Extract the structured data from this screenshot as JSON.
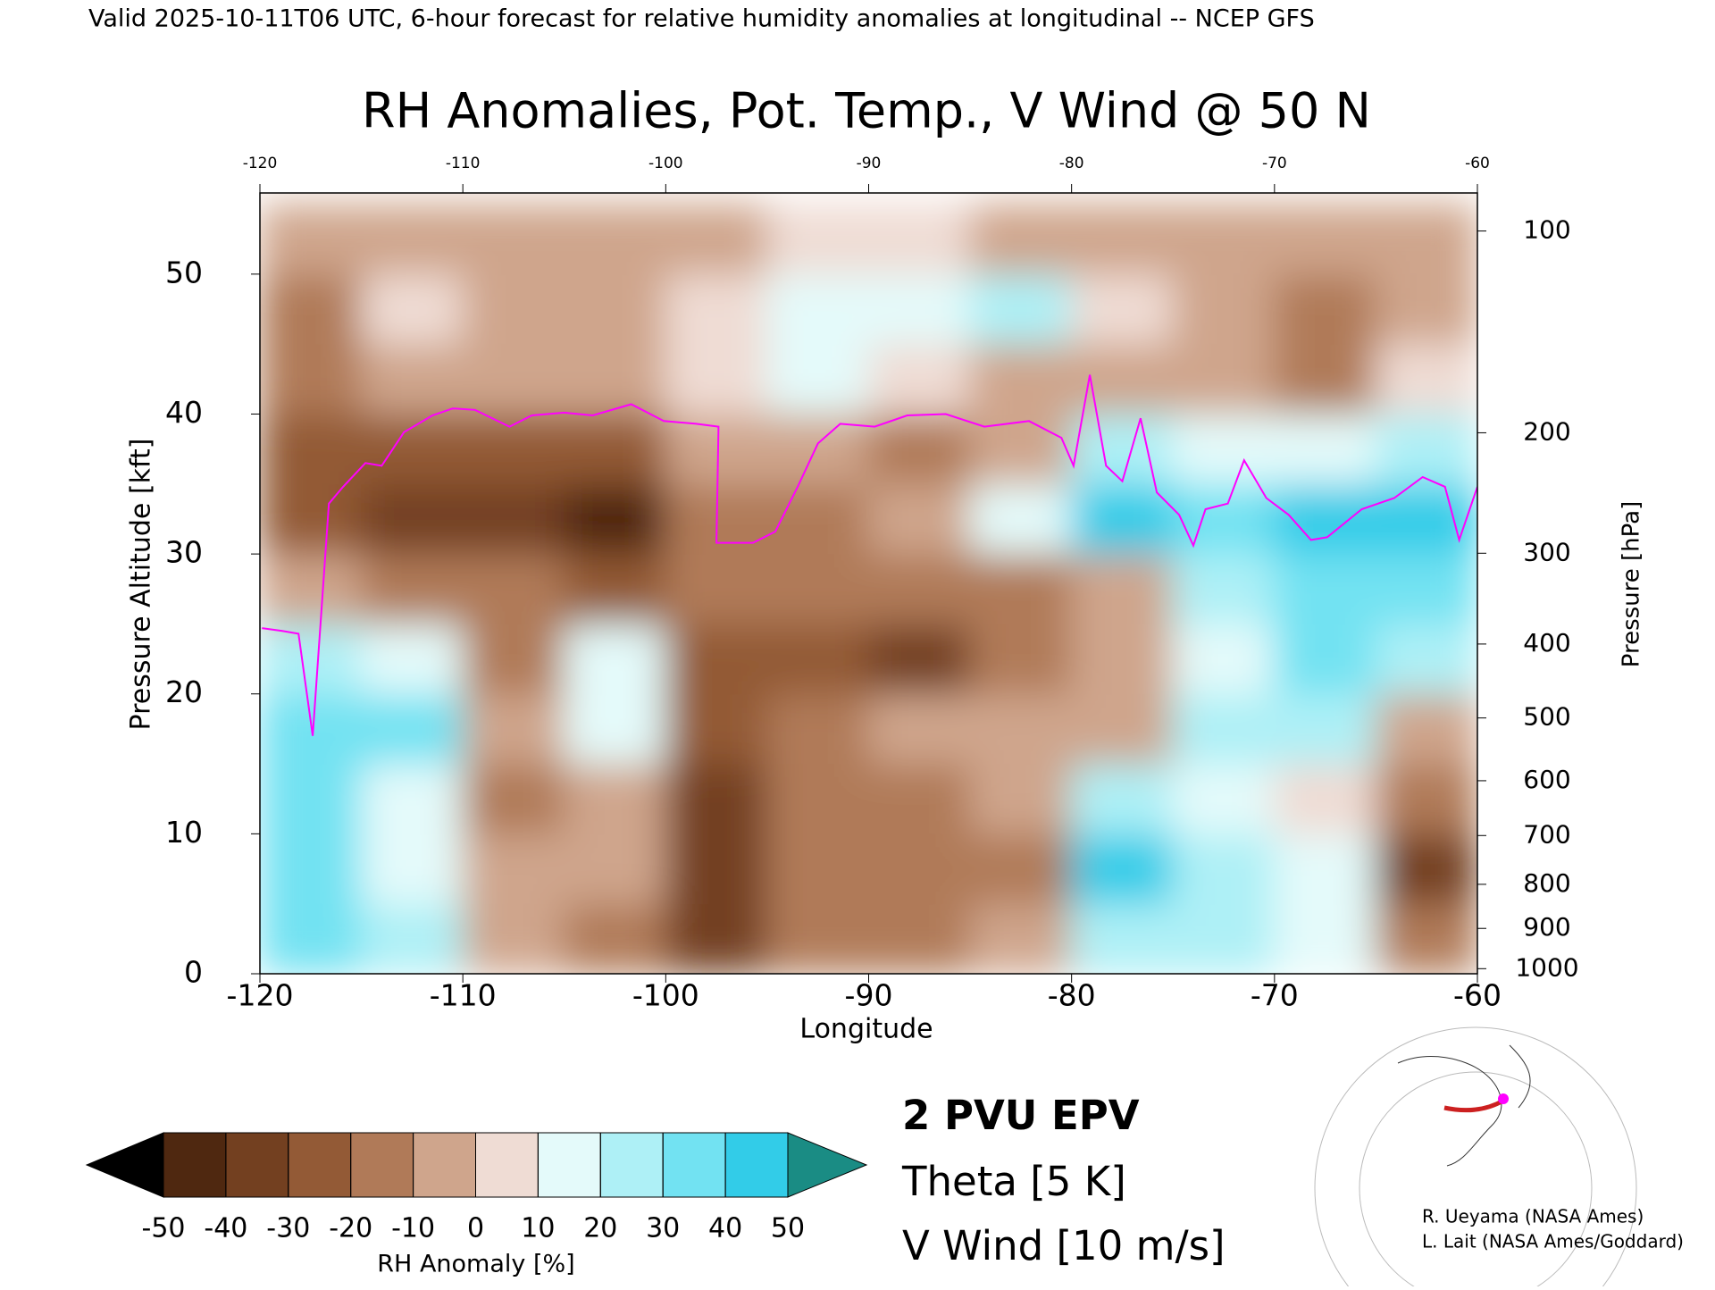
{
  "chart_data": {
    "type": "heatmap",
    "header": "Valid 2025-10-11T06 UTC, 6-hour forecast for relative humidity anomalies at longitudinal -- NCEP GFS",
    "title": "RH Anomalies, Pot. Temp., V Wind @ 50 N",
    "xlabel": "Longitude",
    "ylabel": "Pressure Altitude [kft]",
    "y2label": "Pressure [hPa]",
    "xlim": [
      -120,
      -60
    ],
    "xticks": [
      -120,
      -110,
      -100,
      -90,
      -80,
      -70,
      -60
    ],
    "ylim": [
      0,
      55.8
    ],
    "yticks": [
      0,
      10,
      20,
      30,
      40,
      50
    ],
    "y2scale": "pressure_altitude",
    "y2ticks": [
      100,
      200,
      300,
      400,
      500,
      600,
      700,
      800,
      900,
      1000
    ],
    "x": [
      -117.5,
      -112.5,
      -107.5,
      -102.5,
      -97.5,
      -92.5,
      -87.5,
      -82.5,
      -77.5,
      -72.5,
      -67.5,
      -62.5
    ],
    "y": [
      2.5,
      7.5,
      12.5,
      17.5,
      22.5,
      27.5,
      32.5,
      37.5,
      42.5,
      47.5,
      52.5
    ],
    "z": [
      [
        30,
        20,
        -10,
        -15,
        -35,
        -20,
        -15,
        -10,
        25,
        20,
        10,
        -15
      ],
      [
        35,
        15,
        -10,
        -10,
        -40,
        -20,
        -15,
        -15,
        40,
        20,
        10,
        -35
      ],
      [
        30,
        10,
        -15,
        -5,
        -35,
        -20,
        -15,
        -10,
        20,
        10,
        5,
        -20
      ],
      [
        35,
        35,
        -10,
        10,
        -30,
        -15,
        -10,
        -10,
        -5,
        20,
        25,
        -5
      ],
      [
        20,
        15,
        -15,
        10,
        -25,
        -30,
        -35,
        -20,
        -10,
        15,
        35,
        25
      ],
      [
        -5,
        -15,
        -20,
        -25,
        -15,
        -15,
        -15,
        -15,
        -10,
        20,
        30,
        35
      ],
      [
        -30,
        -40,
        -40,
        -45,
        -20,
        -15,
        -10,
        10,
        40,
        30,
        45,
        40
      ],
      [
        -25,
        -30,
        -25,
        -25,
        -10,
        -10,
        -15,
        -5,
        20,
        15,
        15,
        25
      ],
      [
        -20,
        -10,
        -10,
        -10,
        5,
        10,
        5,
        -5,
        -5,
        -10,
        -20,
        5
      ],
      [
        -15,
        5,
        -5,
        -5,
        5,
        15,
        10,
        20,
        0,
        -10,
        -15,
        -10
      ],
      [
        -8,
        -5,
        -5,
        -5,
        -3,
        5,
        0,
        -3,
        -5,
        -8,
        -10,
        -10
      ]
    ],
    "colorbar": {
      "label": "RH Anomaly [%]",
      "ticks": [
        -50,
        -40,
        -30,
        -20,
        -10,
        0,
        10,
        20,
        30,
        40,
        50
      ],
      "colors": [
        "#4f2810",
        "#734020",
        "#935a36",
        "#b07a58",
        "#cfa58c",
        "#efdcd4",
        "#e4fafa",
        "#aef0f6",
        "#72e2f2",
        "#32cce8",
        "#0aa4c4"
      ],
      "under_color": "#000000",
      "over_color": "#1a8c84"
    },
    "series": [
      {
        "name": "2 PVU EPV",
        "color": "#ff00ff",
        "x": [
          -119.9,
          -118.9,
          -118.1,
          -117.4,
          -116.6,
          -115.9,
          -114.8,
          -114.0,
          -112.9,
          -111.5,
          -110.5,
          -109.4,
          -107.7,
          -106.6,
          -105.0,
          -103.6,
          -101.7,
          -100.1,
          -98.5,
          -97.4,
          -97.5,
          -95.7,
          -94.6,
          -93.5,
          -92.5,
          -91.4,
          -89.7,
          -88.1,
          -86.2,
          -84.3,
          -82.1,
          -80.5,
          -79.9,
          -79.1,
          -78.3,
          -77.5,
          -76.6,
          -75.8,
          -74.7,
          -74.0,
          -73.4,
          -72.3,
          -71.5,
          -70.4,
          -69.3,
          -68.2,
          -67.4,
          -65.7,
          -64.1,
          -62.7,
          -61.6,
          -60.9,
          -60.0
        ],
        "values": [
          24.7,
          24.5,
          24.3,
          17,
          33.6,
          34.8,
          36.5,
          36.3,
          38.7,
          39.9,
          40.4,
          40.3,
          39.1,
          39.9,
          40.1,
          39.9,
          40.7,
          39.5,
          39.3,
          39.1,
          30.8,
          30.8,
          31.6,
          34.8,
          37.9,
          39.3,
          39.1,
          39.9,
          40.0,
          39.1,
          39.5,
          38.3,
          36.3,
          42.8,
          36.3,
          35.2,
          39.7,
          34.4,
          32.8,
          30.6,
          33.2,
          33.6,
          36.7,
          34.0,
          32.8,
          31.0,
          31.2,
          33.2,
          34.0,
          35.5,
          34.8,
          31.0,
          34.8
        ]
      }
    ],
    "annotations": [
      {
        "text": "Theta [5 K]",
        "color": "#a8a8a8"
      },
      {
        "text": "V Wind [10 m/s]",
        "color": "#000000"
      }
    ],
    "credits": [
      "R. Ueyama (NASA Ames)",
      "L. Lait (NASA Ames/Goddard)"
    ]
  }
}
